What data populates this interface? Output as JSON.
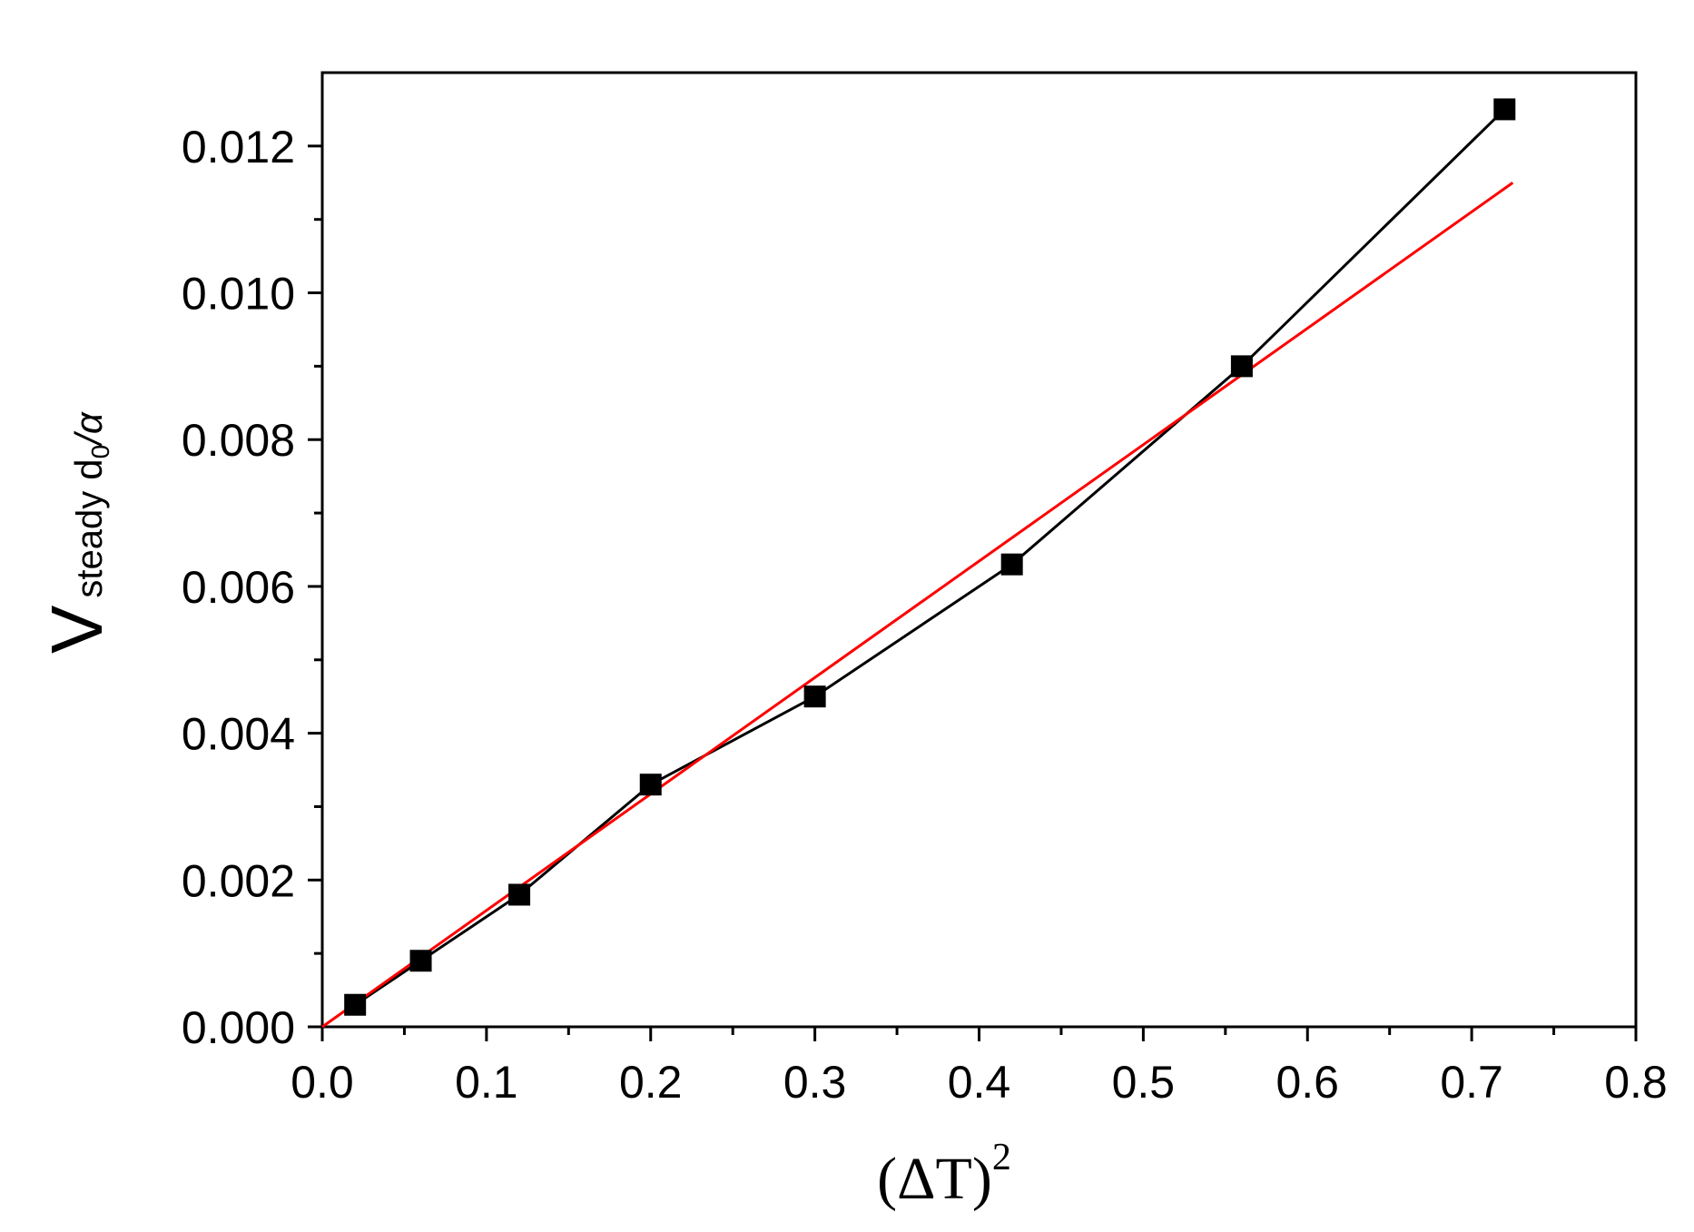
{
  "chart_data": {
    "type": "scatter",
    "title": "",
    "xlabel": {
      "main": "(ΔT)",
      "superscript": "2"
    },
    "ylabel": {
      "main": "V",
      "subscript": "steady",
      "rest": "d",
      "rest_subscript": "0",
      "tail": "/α"
    },
    "xlim": [
      0.0,
      0.8
    ],
    "ylim": [
      0.0,
      0.013
    ],
    "x_ticks": [
      "0.0",
      "0.1",
      "0.2",
      "0.3",
      "0.4",
      "0.5",
      "0.6",
      "0.7",
      "0.8"
    ],
    "x_tick_values": [
      0.0,
      0.1,
      0.2,
      0.3,
      0.4,
      0.5,
      0.6,
      0.7,
      0.8
    ],
    "y_ticks": [
      "0.000",
      "0.002",
      "0.004",
      "0.006",
      "0.008",
      "0.010",
      "0.012"
    ],
    "y_tick_values": [
      0.0,
      0.002,
      0.004,
      0.006,
      0.008,
      0.01,
      0.012
    ],
    "grid": false,
    "legend": "none",
    "series": [
      {
        "style": "line-with-square-markers",
        "color": "#000000",
        "x": [
          0.02,
          0.06,
          0.12,
          0.2,
          0.3,
          0.42,
          0.56,
          0.72
        ],
        "y": [
          0.0003,
          0.0009,
          0.0018,
          0.0033,
          0.0045,
          0.0063,
          0.009,
          0.0125
        ]
      },
      {
        "style": "fit-line",
        "color": "#ff0000",
        "x": [
          0.0,
          0.725
        ],
        "y": [
          0.0,
          0.0115
        ]
      }
    ]
  }
}
